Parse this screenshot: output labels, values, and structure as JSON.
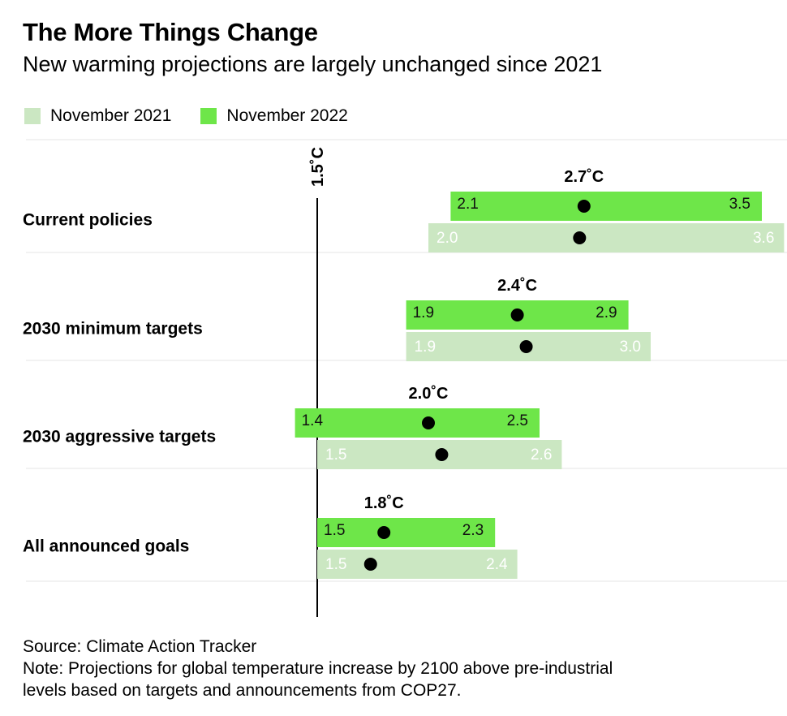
{
  "header": {
    "title": "The More Things Change",
    "subtitle": "New warming projections are largely unchanged since 2021"
  },
  "legend": [
    {
      "label": "November 2021",
      "color": "#cbe7c2"
    },
    {
      "label": "November 2022",
      "color": "#6ee649"
    }
  ],
  "footer": {
    "source": "Source: Climate Action Tracker",
    "note_line1": "Note: Projections for global temperature increase by 2100 above pre-industrial",
    "note_line2": "levels based on targets and announcements from COP27."
  },
  "chart_data": {
    "type": "range-dot",
    "reference_line": {
      "value": 1.5,
      "label": "1.5˚C"
    },
    "categories": [
      "Current policies",
      "2030 minimum targets",
      "2030 aggressive targets",
      "All announced goals"
    ],
    "series": [
      {
        "name": "November 2022",
        "color": "#6ee649",
        "low": [
          2.1,
          1.9,
          1.4,
          1.5
        ],
        "high": [
          3.5,
          2.9,
          2.5,
          2.3
        ],
        "low_labels": [
          "2.1",
          "1.9",
          "1.4",
          "1.5"
        ],
        "high_labels": [
          "3.5",
          "2.9",
          "2.5",
          "2.3"
        ],
        "median": [
          2.7,
          2.4,
          2.0,
          1.8
        ],
        "median_labels": [
          "2.7˚C",
          "2.4˚C",
          "2.0˚C",
          "1.8˚C"
        ]
      },
      {
        "name": "November 2021",
        "color": "#cbe7c2",
        "low": [
          2.0,
          1.9,
          1.5,
          1.5
        ],
        "high": [
          3.6,
          3.0,
          2.6,
          2.4
        ],
        "low_labels": [
          "2.0",
          "1.9",
          "1.5",
          "1.5"
        ],
        "high_labels": [
          "3.6",
          "3.0",
          "2.6",
          "2.4"
        ],
        "median": [
          2.68,
          2.44,
          2.06,
          1.74
        ]
      }
    ]
  }
}
